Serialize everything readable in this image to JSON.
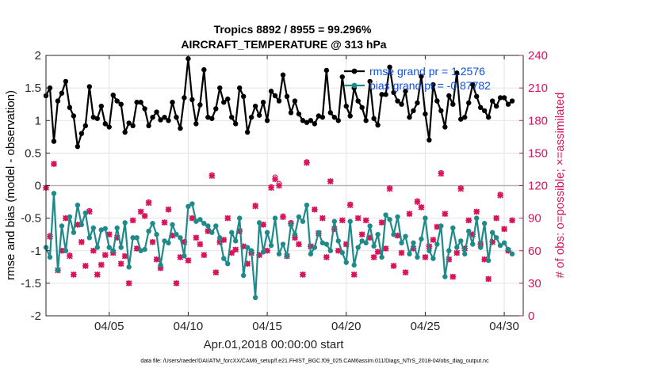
{
  "chart_data": {
    "type": "line",
    "title_line1": "Tropics 8892 / 8955 = 99.296%",
    "title_line2": "AIRCRAFT_TEMPERATURE @ 313 hPa",
    "xlabel": "Apr.01,2018 00:00:00 start",
    "ylabel_left": "rmse and bias (model - observation)",
    "ylabel_right": "# of obs: o=possible; ×=assimilated",
    "xlim": [
      1,
      31.2
    ],
    "ylim_left": [
      -2,
      2
    ],
    "ylim_right": [
      0,
      240
    ],
    "x_ticks": [
      {
        "value": 5,
        "label": "04/05"
      },
      {
        "value": 10,
        "label": "04/10"
      },
      {
        "value": 15,
        "label": "04/15"
      },
      {
        "value": 20,
        "label": "04/20"
      },
      {
        "value": 25,
        "label": "04/25"
      },
      {
        "value": 30,
        "label": "04/30"
      }
    ],
    "y_ticks_left": [
      {
        "value": 2,
        "label": "2"
      },
      {
        "value": 1.5,
        "label": "1.5"
      },
      {
        "value": 1,
        "label": "1"
      },
      {
        "value": 0.5,
        "label": "0.5"
      },
      {
        "value": 0,
        "label": "0"
      },
      {
        "value": -0.5,
        "label": "-0.5"
      },
      {
        "value": -1,
        "label": "-1"
      },
      {
        "value": -1.5,
        "label": "-1.5"
      },
      {
        "value": -2,
        "label": "-2"
      }
    ],
    "y_ticks_right": [
      {
        "value": 240,
        "label": "240"
      },
      {
        "value": 210,
        "label": "210"
      },
      {
        "value": 180,
        "label": "180"
      },
      {
        "value": 150,
        "label": "150"
      },
      {
        "value": 120,
        "label": "120"
      },
      {
        "value": 90,
        "label": "90"
      },
      {
        "value": 60,
        "label": "60"
      },
      {
        "value": 30,
        "label": "30"
      },
      {
        "value": 0,
        "label": "0"
      }
    ],
    "legend": [
      {
        "name": "rmse grand pr = 1.2576",
        "color": "#000000"
      },
      {
        "name": "bias grand pr = -0.87782",
        "color": "#1f8a8a"
      }
    ],
    "zero_line_value": 0,
    "series": [
      {
        "name": "rmse",
        "axis": "left",
        "color": "#000000",
        "x_start": 1.0,
        "x_step": 0.25,
        "values": [
          1.38,
          1.5,
          0.68,
          1.3,
          1.42,
          1.6,
          1.2,
          1.07,
          0.6,
          0.8,
          0.92,
          1.52,
          1.05,
          1.03,
          1.22,
          0.95,
          0.9,
          1.39,
          1.3,
          1.25,
          0.82,
          0.96,
          0.92,
          1.28,
          1.28,
          1.18,
          0.92,
          1.05,
          1.13,
          1.01,
          1.05,
          1.0,
          1.28,
          1.05,
          0.88,
          1.35,
          1.95,
          1.32,
          0.95,
          1.24,
          1.78,
          1.05,
          1.03,
          1.18,
          1.5,
          1.28,
          1.33,
          1.05,
          0.95,
          1.5,
          1.37,
          0.82,
          1.05,
          1.22,
          1.08,
          1.28,
          1.0,
          1.45,
          1.38,
          1.3,
          1.7,
          1.37,
          1.12,
          1.3,
          1.1,
          1.0,
          0.97,
          1.0,
          0.95,
          1.07,
          1.05,
          1.77,
          1.12,
          1.05,
          1.0,
          1.67,
          1.22,
          1.07,
          1.5,
          1.3,
          1.2,
          1.0,
          1.6,
          1.03,
          0.93,
          1.4,
          1.4,
          1.82,
          1.43,
          1.3,
          1.25,
          1.45,
          1.05,
          1.15,
          1.27,
          1.68,
          1.1,
          0.7,
          1.55,
          1.3,
          1.15,
          0.9,
          1.38,
          1.25,
          1.73,
          1.02,
          1.05,
          1.27,
          1.55,
          1.37,
          1.2,
          1.15,
          1.05,
          1.3,
          1.22,
          1.35,
          1.35,
          1.25,
          1.3
        ]
      },
      {
        "name": "bias",
        "axis": "left",
        "color": "#1f8a8a",
        "x_start": 1.0,
        "x_step": 0.25,
        "values": [
          -0.95,
          -1.1,
          -0.12,
          -1.3,
          -0.62,
          -1.0,
          -0.48,
          -0.72,
          -0.3,
          -0.6,
          -0.42,
          -0.8,
          -0.65,
          -0.95,
          -0.68,
          -0.66,
          -0.95,
          -1.0,
          -0.65,
          -0.95,
          -0.57,
          -1.25,
          -0.8,
          -0.8,
          -1.0,
          -0.98,
          -0.7,
          -0.58,
          -0.75,
          -1.22,
          -0.85,
          -0.88,
          -0.6,
          -0.75,
          -0.8,
          -1.08,
          -0.32,
          -0.28,
          -0.55,
          -0.52,
          -0.58,
          -0.62,
          -0.72,
          -0.62,
          -0.8,
          -1.12,
          -1.2,
          -0.72,
          -0.85,
          -0.5,
          -1.38,
          -0.95,
          -1.0,
          -1.72,
          -0.57,
          -1.02,
          -0.72,
          -0.92,
          -0.5,
          -1.05,
          -0.9,
          -1.08,
          -0.6,
          -0.75,
          -0.48,
          -0.55,
          -0.3,
          -1.05,
          -0.95,
          -0.72,
          -0.88,
          -0.9,
          -1.0,
          -0.55,
          -0.85,
          -1.03,
          -1.18,
          -0.55,
          -1.22,
          -0.95,
          -0.85,
          -0.88,
          -0.62,
          -0.93,
          -0.75,
          -1.1,
          -0.45,
          -0.52,
          -0.75,
          -0.48,
          -0.88,
          -0.78,
          -1.05,
          -0.88,
          -1.1,
          -0.82,
          -0.5,
          -1.0,
          -1.12,
          -0.9,
          -0.62,
          -1.4,
          -1.0,
          -0.65,
          -0.95,
          -0.85,
          -1.05,
          -0.7,
          -0.9,
          -0.5,
          -0.95,
          -0.58,
          -1.15,
          -0.72,
          -0.8,
          -0.92,
          -0.88,
          -0.98,
          -1.05
        ]
      },
      {
        "name": "obs_possible",
        "axis": "right",
        "color": "#d8145a",
        "x_start": 1.0,
        "x_step": 0.25,
        "values": [
          118,
          74,
          140,
          42,
          60,
          90,
          56,
          38,
          84,
          68,
          46,
          97,
          60,
          38,
          47,
          56,
          75,
          58,
          72,
          48,
          55,
          30,
          88,
          62,
          96,
          92,
          105,
          68,
          52,
          44,
          86,
          98,
          74,
          30,
          54,
          68,
          51,
          90,
          72,
          66,
          56,
          78,
          130,
          40,
          68,
          70,
          90,
          58,
          61,
          78,
          64,
          48,
          58,
          102,
          56,
          84,
          60,
          119,
          128,
          122,
          92,
          55,
          86,
          72,
          66,
          38,
          142,
          64,
          98,
          76,
          90,
          54,
          124,
          80,
          60,
          88,
          66,
          103,
          38,
          90,
          75,
          88,
          72,
          54,
          59,
          86,
          62,
          118,
          46,
          74,
          58,
          40,
          94,
          62,
          106,
          100,
          54,
          64,
          70,
          82,
          132,
          94,
          52,
          36,
          58,
          118,
          62,
          88,
          75,
          96,
          66,
          52,
          34,
          68,
          90,
          112,
          80,
          60,
          88
        ]
      },
      {
        "name": "obs_assimilated",
        "axis": "right",
        "color": "#d8145a",
        "x_start": 1.0,
        "x_step": 0.25,
        "values": [
          118,
          73,
          140,
          42,
          60,
          90,
          55,
          38,
          84,
          68,
          46,
          96,
          60,
          38,
          47,
          56,
          75,
          58,
          72,
          48,
          55,
          30,
          88,
          62,
          96,
          92,
          104,
          68,
          52,
          44,
          86,
          98,
          74,
          30,
          54,
          68,
          51,
          90,
          72,
          66,
          56,
          78,
          129,
          40,
          68,
          70,
          90,
          58,
          61,
          78,
          64,
          48,
          58,
          101,
          56,
          84,
          60,
          118,
          126,
          120,
          91,
          55,
          85,
          72,
          66,
          38,
          141,
          64,
          98,
          76,
          90,
          54,
          124,
          80,
          60,
          88,
          66,
          102,
          38,
          90,
          75,
          88,
          72,
          54,
          59,
          86,
          62,
          117,
          46,
          74,
          58,
          40,
          94,
          62,
          105,
          100,
          54,
          64,
          70,
          82,
          131,
          94,
          52,
          36,
          58,
          117,
          62,
          88,
          75,
          96,
          66,
          52,
          34,
          68,
          90,
          111,
          80,
          60,
          88
        ]
      }
    ]
  },
  "footer": "data file: /Users/raeder/DAI/ATM_forcXX/CAM6_setup/f.e21.FHIST_BGC.f09_025.CAM6assim.011/Diags_NTrS_2018-04/obs_diag_output.nc"
}
